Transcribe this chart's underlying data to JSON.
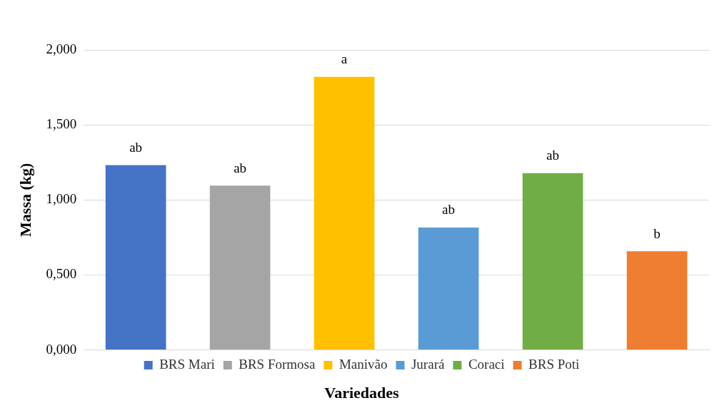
{
  "chart_data": {
    "type": "bar",
    "xlabel": "Variedades",
    "ylabel": "Massa (kg)",
    "categories": [
      null,
      null,
      null,
      null,
      null,
      null
    ],
    "series": [
      {
        "name": "BRS Mari",
        "color": "#4472c4",
        "values": [
          1.232,
          null,
          null,
          null,
          null,
          null
        ]
      },
      {
        "name": "BRS Formosa",
        "color": "#a5a5a5",
        "values": [
          null,
          1.095,
          null,
          null,
          null,
          null
        ]
      },
      {
        "name": "Manivão",
        "color": "#ffc000",
        "values": [
          null,
          null,
          1.821,
          null,
          null,
          null
        ]
      },
      {
        "name": "Jurará",
        "color": "#5b9bd5",
        "values": [
          null,
          null,
          null,
          0.816,
          null,
          null
        ]
      },
      {
        "name": "Coraci",
        "color": "#70ad47",
        "values": [
          null,
          null,
          null,
          null,
          1.179,
          null
        ]
      },
      {
        "name": "BRS Poti",
        "color": "#ed7d31",
        "values": [
          null,
          null,
          null,
          null,
          null,
          0.658
        ]
      }
    ],
    "ylim": [
      0,
      2
    ],
    "yticks": [
      {
        "value": 0,
        "label": "0,000"
      },
      {
        "value": 0.5,
        "label": "0,500"
      },
      {
        "value": 1,
        "label": "1,000"
      },
      {
        "value": 1.5,
        "label": "1,500"
      },
      {
        "value": 2,
        "label": "2,000"
      }
    ],
    "annotations": [
      {
        "text": "ab",
        "y": 1.232
      },
      {
        "text": "ab",
        "y": 1.095
      },
      {
        "text": "a",
        "y": 1.821
      },
      {
        "text": "ab",
        "y": 0.816
      },
      {
        "text": "ab",
        "y": 1.179
      },
      {
        "text": "b",
        "y": 0.658
      }
    ],
    "grid": "y",
    "legend": "bottom",
    "tick_labels": "y"
  }
}
